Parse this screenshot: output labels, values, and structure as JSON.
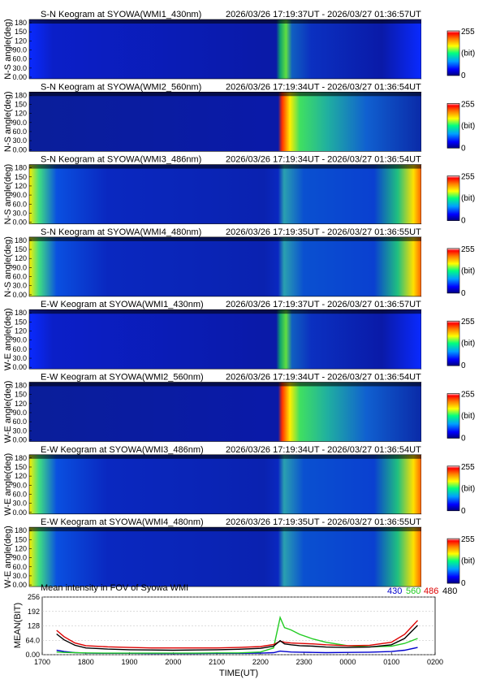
{
  "panels": [
    {
      "title": "S-N Keogram at SYOWA(WMI1_430nm)",
      "time_range": "2026/03/26 17:19:37UT - 2026/03/27 01:36:57UT",
      "ylabel": "N-S angle(deg)",
      "wavelength": "430",
      "colorbar_max": "255",
      "colorbar_unit": "(bit)",
      "colorbar_min": "0"
    },
    {
      "title": "S-N Keogram at SYOWA(WMI2_560nm)",
      "time_range": "2026/03/26 17:19:34UT - 2026/03/27 01:36:54UT",
      "ylabel": "N-S angle(deg)",
      "wavelength": "560",
      "colorbar_max": "255",
      "colorbar_unit": "(bit)",
      "colorbar_min": "0"
    },
    {
      "title": "S-N Keogram at SYOWA(WMI3_486nm)",
      "time_range": "2026/03/26 17:19:34UT - 2026/03/27 01:36:54UT",
      "ylabel": "N-S angle(deg)",
      "wavelength": "486",
      "colorbar_max": "255",
      "colorbar_unit": "(bit)",
      "colorbar_min": "0"
    },
    {
      "title": "S-N Keogram at SYOWA(WMI4_480nm)",
      "time_range": "2026/03/26 17:19:35UT - 2026/03/27 01:36:55UT",
      "ylabel": "N-S angle(deg)",
      "wavelength": "480",
      "colorbar_max": "255",
      "colorbar_unit": "(bit)",
      "colorbar_min": "0"
    },
    {
      "title": "E-W Keogram at SYOWA(WMI1_430nm)",
      "time_range": "2026/03/26 17:19:37UT - 2026/03/27 01:36:57UT",
      "ylabel": "W-E angle(deg)",
      "wavelength": "430",
      "colorbar_max": "255",
      "colorbar_unit": "(bit)",
      "colorbar_min": "0"
    },
    {
      "title": "E-W Keogram at SYOWA(WMI2_560nm)",
      "time_range": "2026/03/26 17:19:34UT - 2026/03/27 01:36:54UT",
      "ylabel": "W-E angle(deg)",
      "wavelength": "560",
      "colorbar_max": "255",
      "colorbar_unit": "(bit)",
      "colorbar_min": "0"
    },
    {
      "title": "E-W Keogram at SYOWA(WMI3_486nm)",
      "time_range": "2026/03/26 17:19:34UT - 2026/03/27 01:36:54UT",
      "ylabel": "W-E angle(deg)",
      "wavelength": "486",
      "colorbar_max": "255",
      "colorbar_unit": "(bit)",
      "colorbar_min": "0"
    },
    {
      "title": "E-W Keogram at SYOWA(WMI4_480nm)",
      "time_range": "2026/03/26 17:19:35UT - 2026/03/27 01:36:55UT",
      "ylabel": "W-E angle(deg)",
      "wavelength": "480",
      "colorbar_max": "255",
      "colorbar_unit": "(bit)",
      "colorbar_min": "0"
    }
  ],
  "keogram_yticks": [
    "0.00",
    "30.0",
    "60.0",
    "90.0",
    "120",
    "150",
    "180"
  ],
  "mean_panel": {
    "title": "Mean intensity in FOV of Syowa WMI",
    "legend": [
      {
        "label": "430",
        "color": "#0000cc"
      },
      {
        "label": "560",
        "color": "#22cc22"
      },
      {
        "label": "486",
        "color": "#dd0000"
      },
      {
        "label": "480",
        "color": "#000000"
      }
    ],
    "ylabel": "MEAN(BIT)",
    "xlabel": "TIME(UT)"
  },
  "chart_data": {
    "type": "line",
    "title": "Mean intensity in FOV of Syowa WMI",
    "xlabel": "TIME(UT)",
    "ylabel": "MEAN(BIT)",
    "x_ticks": [
      "1700",
      "1800",
      "1900",
      "2000",
      "2100",
      "2200",
      "2300",
      "0000",
      "0100",
      "0200"
    ],
    "y_ticks": [
      "0.00",
      "64.0",
      "128",
      "192",
      "256"
    ],
    "xlim": [
      17.0,
      26.0
    ],
    "ylim": [
      0,
      256
    ],
    "x_unit": "hours UT (values past 24 are next day)",
    "x": [
      17.33,
      17.5,
      17.75,
      18.0,
      18.5,
      19.0,
      19.5,
      20.0,
      20.5,
      21.0,
      21.5,
      22.0,
      22.3,
      22.45,
      22.55,
      22.7,
      22.9,
      23.2,
      23.5,
      24.0,
      24.5,
      25.0,
      25.3,
      25.6
    ],
    "series": [
      {
        "name": "430",
        "color": "#0000cc",
        "values": [
          20,
          14,
          9,
          7,
          6,
          6,
          5,
          5,
          5,
          6,
          6,
          7,
          9,
          16,
          14,
          12,
          11,
          10,
          9,
          10,
          11,
          14,
          20,
          32
        ]
      },
      {
        "name": "560",
        "color": "#22cc22",
        "values": [
          12,
          10,
          9,
          8,
          7,
          7,
          7,
          7,
          7,
          8,
          8,
          12,
          30,
          165,
          120,
          110,
          90,
          70,
          55,
          40,
          35,
          38,
          50,
          72
        ]
      },
      {
        "name": "486",
        "color": "#dd0000",
        "values": [
          108,
          80,
          52,
          40,
          35,
          32,
          30,
          30,
          30,
          30,
          32,
          36,
          45,
          60,
          55,
          52,
          50,
          48,
          44,
          40,
          42,
          55,
          90,
          152
        ]
      },
      {
        "name": "480",
        "color": "#000000",
        "values": [
          92,
          66,
          42,
          30,
          25,
          22,
          21,
          20,
          21,
          22,
          24,
          28,
          38,
          62,
          48,
          44,
          40,
          38,
          34,
          32,
          34,
          44,
          72,
          130
        ]
      }
    ]
  },
  "colors": {
    "background": "#0a1aa8",
    "colormap": [
      "#000080",
      "#0000ff",
      "#00a0ff",
      "#00ff80",
      "#ffff00",
      "#ff8000",
      "#ff0000",
      "#ffdddd"
    ]
  }
}
